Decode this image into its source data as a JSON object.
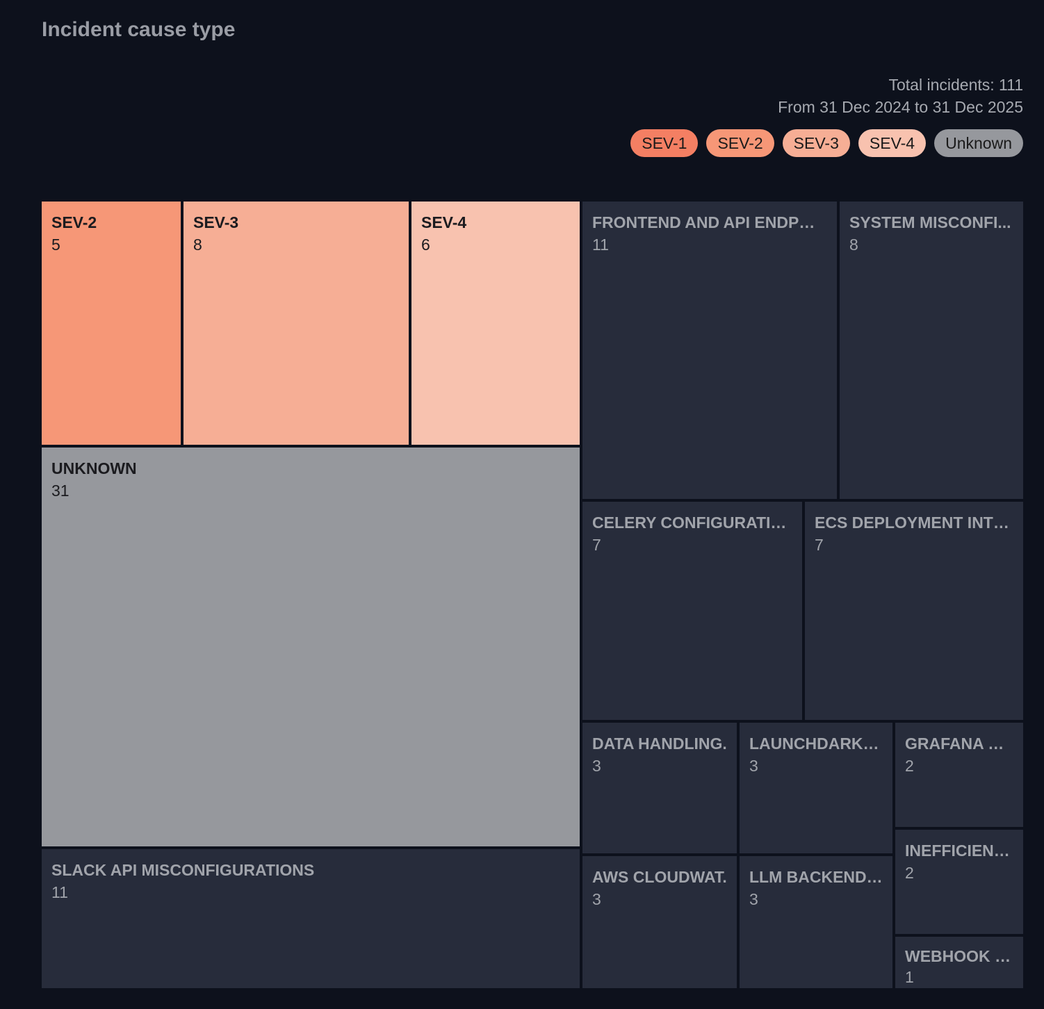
{
  "header": {
    "title": "Incident cause type",
    "total": "Total incidents: 111",
    "range": "From 31 Dec 2024 to 31 Dec 2025"
  },
  "legend": [
    {
      "label": "SEV-1",
      "color": "#f47f63"
    },
    {
      "label": "SEV-2",
      "color": "#f69777"
    },
    {
      "label": "SEV-3",
      "color": "#f6ae95"
    },
    {
      "label": "SEV-4",
      "color": "#f8c2af"
    },
    {
      "label": "Unknown",
      "color": "#96989d"
    }
  ],
  "chart_data": {
    "type": "treemap",
    "title": "Incident cause type",
    "total": 111,
    "cells": [
      {
        "label": "SEV-2",
        "value": 5,
        "kind": "severity",
        "color": "#f69777"
      },
      {
        "label": "SEV-3",
        "value": 8,
        "kind": "severity",
        "color": "#f6ae95"
      },
      {
        "label": "SEV-4",
        "value": 6,
        "kind": "severity",
        "color": "#f8c2af"
      },
      {
        "label": "UNKNOWN",
        "value": 31,
        "kind": "severity",
        "color": "#96989d"
      },
      {
        "label": "SLACK API MISCONFIGURATIONS",
        "value": 11,
        "kind": "cause",
        "color": "#272c3b"
      },
      {
        "label": "FRONTEND AND API ENDPOI...",
        "value": 11,
        "kind": "cause",
        "color": "#272c3b"
      },
      {
        "label": "SYSTEM MISCONFI...",
        "value": 8,
        "kind": "cause",
        "color": "#272c3b"
      },
      {
        "label": "CELERY CONFIGURATIO...",
        "value": 7,
        "kind": "cause",
        "color": "#272c3b"
      },
      {
        "label": "ECS DEPLOYMENT INTE...",
        "value": 7,
        "kind": "cause",
        "color": "#272c3b"
      },
      {
        "label": "DATA HANDLING.",
        "value": 3,
        "kind": "cause",
        "color": "#272c3b"
      },
      {
        "label": "LAUNCHDARKL...",
        "value": 3,
        "kind": "cause",
        "color": "#272c3b"
      },
      {
        "label": "GRAFANA QU.",
        "value": 2,
        "kind": "cause",
        "color": "#272c3b"
      },
      {
        "label": "AWS CLOUDWAT.",
        "value": 3,
        "kind": "cause",
        "color": "#272c3b"
      },
      {
        "label": "LLM BACKEND P..",
        "value": 3,
        "kind": "cause",
        "color": "#272c3b"
      },
      {
        "label": "INEFFICIENT ..",
        "value": 2,
        "kind": "cause",
        "color": "#272c3b"
      },
      {
        "label": "WEBHOOK D..",
        "value": 1,
        "kind": "cause",
        "color": "#272c3b"
      }
    ]
  }
}
